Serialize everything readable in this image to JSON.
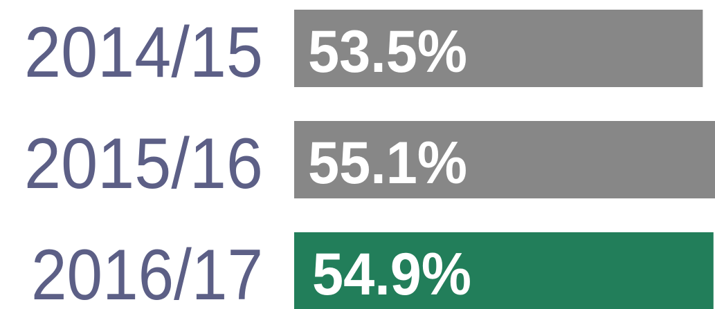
{
  "chart_data": {
    "type": "bar",
    "orientation": "horizontal",
    "categories": [
      "2014/15",
      "2015/16",
      "2016/17"
    ],
    "values": [
      53.5,
      55.1,
      54.9
    ],
    "value_labels": [
      "53.5%",
      "55.1%",
      "54.9%"
    ],
    "colors": [
      "#878787",
      "#878787",
      "#227e5a"
    ]
  }
}
